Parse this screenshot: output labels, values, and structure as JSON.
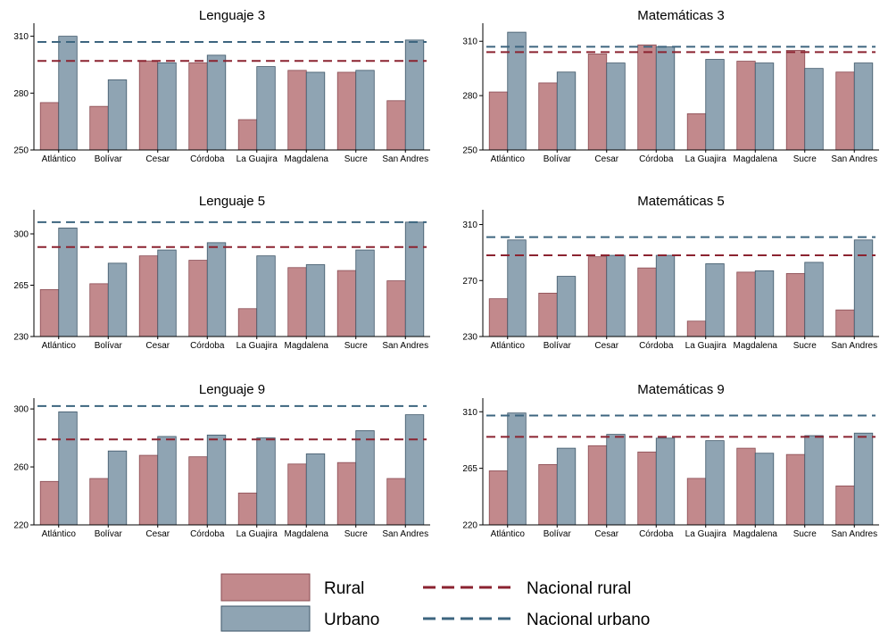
{
  "legend": {
    "items": [
      {
        "label": "Rural",
        "kind": "bar",
        "color": "#c2898c"
      },
      {
        "label": "Urbano",
        "kind": "bar",
        "color": "#8fa4b3"
      },
      {
        "label": "Nacional rural",
        "kind": "dash",
        "color": "#8b2330"
      },
      {
        "label": "Nacional urbano",
        "kind": "dash",
        "color": "#3d657f"
      }
    ]
  },
  "colors": {
    "rural_fill": "#c2898c",
    "rural_stroke": "#8a4b52",
    "urban_fill": "#8fa4b3",
    "urban_stroke": "#3d5668",
    "nacional_rural": "#8b2330",
    "nacional_urbano": "#3d657f"
  },
  "chart_data": [
    {
      "type": "bar",
      "title": "Lenguaje 3",
      "categories": [
        "Atlántico",
        "Bolívar",
        "Cesar",
        "Córdoba",
        "La Guajira",
        "Magdalena",
        "Sucre",
        "San Andres"
      ],
      "series": [
        {
          "name": "Rural",
          "values": [
            275,
            273,
            297,
            296,
            266,
            292,
            291,
            276
          ]
        },
        {
          "name": "Urbano",
          "values": [
            310,
            287,
            296,
            300,
            294,
            291,
            292,
            308
          ]
        }
      ],
      "reference_lines": [
        {
          "name": "Nacional rural",
          "value": 297
        },
        {
          "name": "Nacional urbano",
          "value": 307
        }
      ],
      "yticks": [
        250,
        280,
        310
      ],
      "ylim": [
        250,
        315
      ],
      "xlabel": "",
      "ylabel": ""
    },
    {
      "type": "bar",
      "title": "Matemáticas 3",
      "categories": [
        "Atlántico",
        "Bolívar",
        "Cesar",
        "Córdoba",
        "La Guajira",
        "Magdalena",
        "Sucre",
        "San Andres"
      ],
      "series": [
        {
          "name": "Rural",
          "values": [
            282,
            287,
            303,
            308,
            270,
            299,
            305,
            293
          ]
        },
        {
          "name": "Urbano",
          "values": [
            315,
            293,
            298,
            307,
            300,
            298,
            295,
            298
          ]
        }
      ],
      "reference_lines": [
        {
          "name": "Nacional rural",
          "value": 304
        },
        {
          "name": "Nacional urbano",
          "value": 307
        }
      ],
      "yticks": [
        250,
        280,
        310
      ],
      "ylim": [
        250,
        318
      ],
      "xlabel": "",
      "ylabel": ""
    },
    {
      "type": "bar",
      "title": "Lenguaje 5",
      "categories": [
        "Atlántico",
        "Bolívar",
        "Cesar",
        "Córdoba",
        "La Guajira",
        "Magdalena",
        "Sucre",
        "San Andres"
      ],
      "series": [
        {
          "name": "Rural",
          "values": [
            262,
            266,
            285,
            282,
            249,
            277,
            275,
            268
          ]
        },
        {
          "name": "Urbano",
          "values": [
            304,
            280,
            289,
            294,
            285,
            279,
            289,
            308
          ]
        }
      ],
      "reference_lines": [
        {
          "name": "Nacional rural",
          "value": 291
        },
        {
          "name": "Nacional urbano",
          "value": 308
        }
      ],
      "yticks": [
        230,
        265,
        300
      ],
      "ylim": [
        230,
        314
      ],
      "xlabel": "",
      "ylabel": ""
    },
    {
      "type": "bar",
      "title": "Matemáticas 5",
      "categories": [
        "Atlántico",
        "Bolívar",
        "Cesar",
        "Córdoba",
        "La Guajira",
        "Magdalena",
        "Sucre",
        "San Andres"
      ],
      "series": [
        {
          "name": "Rural",
          "values": [
            257,
            261,
            287,
            279,
            241,
            276,
            275,
            249
          ]
        },
        {
          "name": "Urbano",
          "values": [
            299,
            273,
            288,
            288,
            282,
            277,
            283,
            299
          ]
        }
      ],
      "reference_lines": [
        {
          "name": "Nacional rural",
          "value": 288
        },
        {
          "name": "Nacional urbano",
          "value": 301
        }
      ],
      "yticks": [
        230,
        270,
        310
      ],
      "ylim": [
        230,
        318
      ],
      "xlabel": "",
      "ylabel": ""
    },
    {
      "type": "bar",
      "title": "Lenguaje 9",
      "categories": [
        "Atlántico",
        "Bolívar",
        "Cesar",
        "Córdoba",
        "La Guajira",
        "Magdalena",
        "Sucre",
        "San Andres"
      ],
      "series": [
        {
          "name": "Rural",
          "values": [
            250,
            252,
            268,
            267,
            242,
            262,
            263,
            252
          ]
        },
        {
          "name": "Urbano",
          "values": [
            298,
            271,
            281,
            282,
            280,
            269,
            285,
            296
          ]
        }
      ],
      "reference_lines": [
        {
          "name": "Nacional rural",
          "value": 279
        },
        {
          "name": "Nacional urbano",
          "value": 302
        }
      ],
      "yticks": [
        220,
        260,
        300
      ],
      "ylim": [
        220,
        305
      ],
      "xlabel": "",
      "ylabel": ""
    },
    {
      "type": "bar",
      "title": "Matemáticas 9",
      "categories": [
        "Atlántico",
        "Bolívar",
        "Cesar",
        "Córdoba",
        "La Guajira",
        "Magdalena",
        "Sucre",
        "San Andres"
      ],
      "series": [
        {
          "name": "Rural",
          "values": [
            263,
            268,
            283,
            278,
            257,
            281,
            276,
            251
          ]
        },
        {
          "name": "Urbano",
          "values": [
            309,
            281,
            292,
            289,
            287,
            277,
            291,
            293
          ]
        }
      ],
      "reference_lines": [
        {
          "name": "Nacional rural",
          "value": 290
        },
        {
          "name": "Nacional urbano",
          "value": 307
        }
      ],
      "yticks": [
        220,
        265,
        310
      ],
      "ylim": [
        220,
        318
      ],
      "xlabel": "",
      "ylabel": ""
    }
  ]
}
